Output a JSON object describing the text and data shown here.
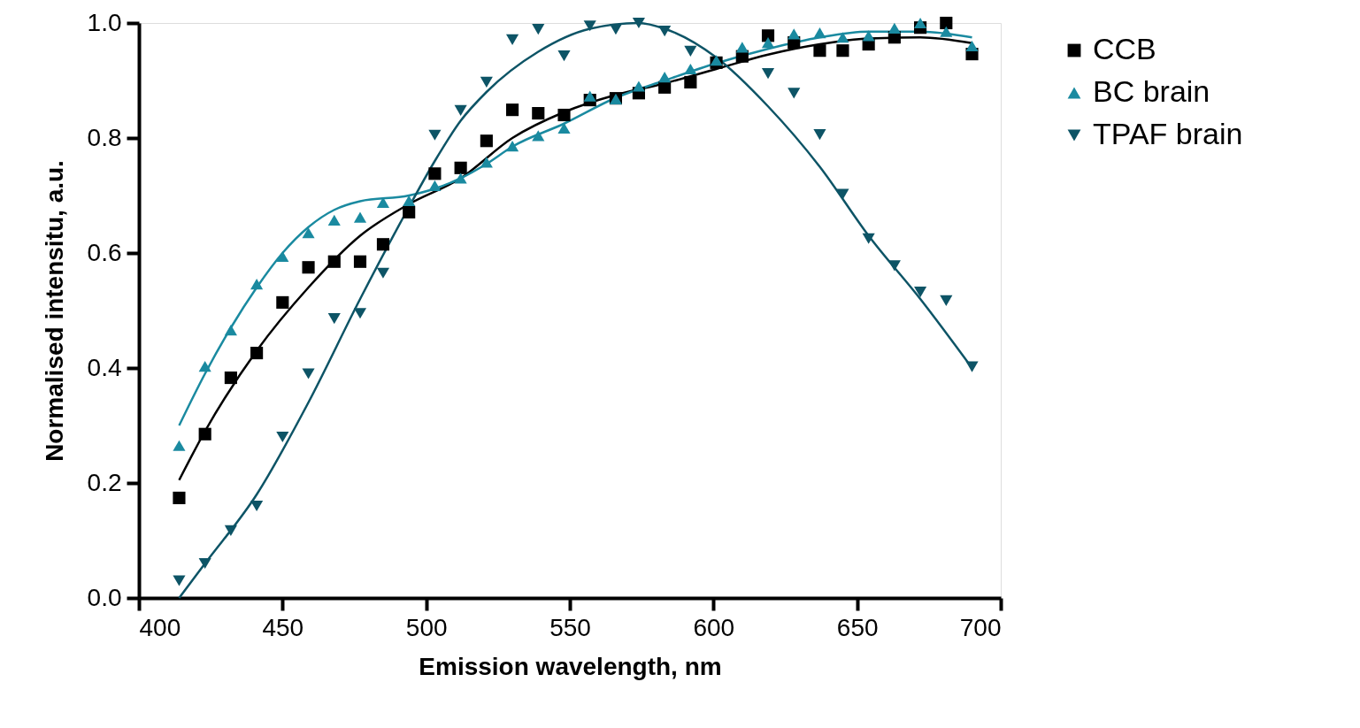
{
  "chart_data": {
    "type": "scatter",
    "xlabel": "Emission wavelength, nm",
    "ylabel": "Normalised intensitu, a.u.",
    "xlim": [
      400,
      700
    ],
    "xticks": [
      400,
      450,
      500,
      550,
      600,
      650,
      700
    ],
    "ylim": [
      0,
      1
    ],
    "yticks": [
      {
        "value": 0,
        "label": "0.0"
      },
      {
        "value": 0.2,
        "label": "0.2"
      },
      {
        "value": 0.4,
        "label": "0.4"
      },
      {
        "value": 0.6,
        "label": "0.6"
      },
      {
        "value": 0.8,
        "label": "0.8"
      },
      {
        "value": 1,
        "label": "1.0"
      }
    ],
    "grid": false,
    "legend": "top right",
    "x": [
      414,
      423,
      432,
      441,
      450,
      459,
      468,
      477,
      485,
      494,
      503,
      512,
      521,
      530,
      539,
      548,
      557,
      566,
      574,
      583,
      592,
      601,
      610,
      619,
      628,
      637,
      645,
      654,
      663,
      672,
      681,
      690
    ],
    "series": [
      {
        "name": "CCB",
        "marker": "square",
        "color": "#000000",
        "values": [
          0.174,
          0.285,
          0.383,
          0.426,
          0.514,
          0.575,
          0.585,
          0.585,
          0.615,
          0.671,
          0.738,
          0.748,
          0.795,
          0.849,
          0.843,
          0.84,
          0.866,
          0.869,
          0.878,
          0.888,
          0.897,
          0.931,
          0.942,
          0.978,
          0.966,
          0.952,
          0.952,
          0.963,
          0.975,
          0.992,
          1.0,
          0.946
        ]
      },
      {
        "name": "BC brain",
        "marker": "triangle",
        "color": "#1a8aa0",
        "values": [
          0.265,
          0.403,
          0.466,
          0.546,
          0.594,
          0.635,
          0.657,
          0.662,
          0.688,
          0.691,
          0.717,
          0.73,
          0.758,
          0.786,
          0.804,
          0.817,
          0.873,
          0.868,
          0.89,
          0.906,
          0.92,
          0.935,
          0.958,
          0.966,
          0.981,
          0.983,
          0.975,
          0.978,
          0.991,
          1.0,
          0.985,
          0.96
        ]
      },
      {
        "name": "TPAF brain",
        "marker": "triangle-down",
        "color": "#0d5466",
        "values": [
          0.03,
          0.06,
          0.117,
          0.16,
          0.28,
          0.39,
          0.486,
          0.495,
          0.565,
          null,
          0.805,
          0.848,
          0.897,
          0.971,
          0.989,
          0.943,
          0.995,
          0.989,
          1.0,
          0.986,
          0.951,
          null,
          null,
          0.912,
          0.878,
          0.806,
          0.702,
          0.625,
          0.578,
          0.532,
          0.517,
          0.402
        ]
      },
      {
        "type": "line",
        "color": "#000000",
        "x": [
          414,
          423,
          441,
          459,
          477,
          494,
          512,
          530,
          548,
          566,
          583,
          601,
          619,
          637,
          654,
          672,
          690
        ],
        "values": [
          0.205,
          0.29,
          0.43,
          0.54,
          0.63,
          0.685,
          0.73,
          0.8,
          0.845,
          0.875,
          0.895,
          0.92,
          0.945,
          0.963,
          0.973,
          0.975,
          0.965
        ]
      },
      {
        "type": "line",
        "color": "#1a8aa0",
        "x": [
          414,
          423,
          432,
          441,
          450,
          459,
          468,
          477,
          494,
          503,
          512,
          521,
          530,
          548,
          566,
          583,
          601,
          619,
          637,
          654,
          672,
          690
        ],
        "values": [
          0.3,
          0.39,
          0.47,
          0.54,
          0.6,
          0.645,
          0.675,
          0.69,
          0.7,
          0.712,
          0.73,
          0.755,
          0.785,
          0.825,
          0.87,
          0.9,
          0.93,
          0.955,
          0.975,
          0.985,
          0.985,
          0.975
        ]
      },
      {
        "type": "line",
        "color": "#0d5466",
        "x": [
          414,
          423,
          441,
          459,
          477,
          494,
          503,
          512,
          521,
          539,
          557,
          574,
          583,
          601,
          619,
          637,
          654,
          672,
          690
        ],
        "values": [
          0.0,
          0.06,
          0.18,
          0.34,
          0.52,
          0.68,
          0.76,
          0.83,
          0.88,
          0.95,
          0.99,
          1.0,
          0.99,
          0.94,
          0.855,
          0.75,
          0.63,
          0.52,
          0.4
        ]
      }
    ]
  }
}
